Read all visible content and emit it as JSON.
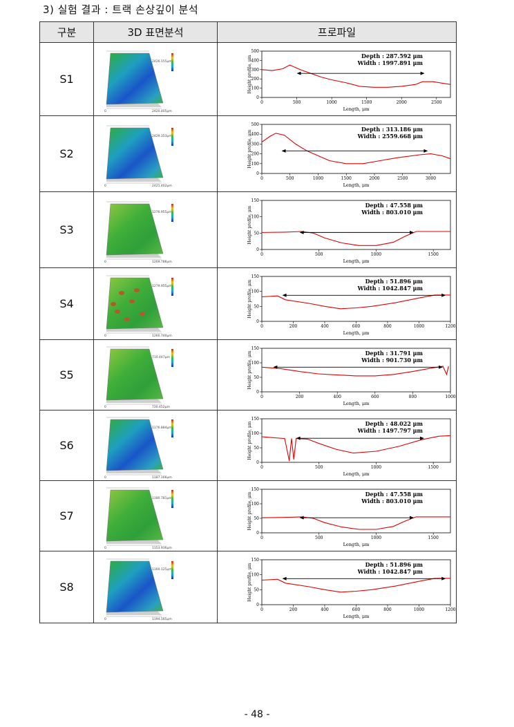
{
  "section_title": "3) 실험 결과 : 트랙 손상깊이 분석",
  "headers": {
    "col1": "구분",
    "col2": "3D 표면분석",
    "col3": "프로파일"
  },
  "page_number": "- 48 -",
  "profile_axis": {
    "xlabel": "Length, μm",
    "ylabel": "Height profile, μm"
  },
  "rows": [
    {
      "id": "S1",
      "map_labels": {
        "right": "2426.155μm",
        "bottom": "2420.405μm",
        "origin": "0"
      },
      "depth": "Depth : 287.592 μm",
      "width": "Width : 1997.891 μm",
      "xticks": [
        "0",
        "500",
        "1000",
        "1500",
        "2000",
        "2500"
      ],
      "yticks": [
        "500",
        "400",
        "300",
        "200",
        "100",
        "0"
      ],
      "xmax": 2700,
      "ymax": 500,
      "profile": [
        [
          0,
          300
        ],
        [
          150,
          290
        ],
        [
          300,
          310
        ],
        [
          400,
          350
        ],
        [
          550,
          300
        ],
        [
          700,
          260
        ],
        [
          850,
          220
        ],
        [
          1000,
          190
        ],
        [
          1200,
          160
        ],
        [
          1400,
          120
        ],
        [
          1600,
          110
        ],
        [
          1800,
          110
        ],
        [
          2000,
          120
        ],
        [
          2200,
          140
        ],
        [
          2300,
          170
        ],
        [
          2450,
          170
        ],
        [
          2700,
          140
        ]
      ],
      "arrow": [
        500,
        2330,
        260
      ]
    },
    {
      "id": "S2",
      "map_labels": {
        "right": "2429.353μm",
        "bottom": "2421.402μm",
        "origin": "0"
      },
      "depth": "Depth : 313.186 μm",
      "width": "Width : 2559.668 μm",
      "xticks": [
        "0",
        "500",
        "1000",
        "1500",
        "2000",
        "2500",
        "3000"
      ],
      "yticks": [
        "500",
        "400",
        "300",
        "200",
        "100",
        "0"
      ],
      "xmax": 3350,
      "ymax": 500,
      "profile": [
        [
          0,
          320
        ],
        [
          150,
          380
        ],
        [
          250,
          410
        ],
        [
          400,
          390
        ],
        [
          600,
          300
        ],
        [
          800,
          230
        ],
        [
          1000,
          180
        ],
        [
          1200,
          130
        ],
        [
          1500,
          100
        ],
        [
          1800,
          100
        ],
        [
          2100,
          130
        ],
        [
          2400,
          160
        ],
        [
          2800,
          190
        ],
        [
          3000,
          200
        ],
        [
          3200,
          180
        ],
        [
          3350,
          150
        ]
      ],
      "arrow": [
        350,
        2950,
        230
      ]
    },
    {
      "id": "S3",
      "map_labels": {
        "right": "1276.955μm",
        "bottom": "1269.786μm",
        "origin": "0"
      },
      "depth": "Depth : 47.558 μm",
      "width": "Width : 803.010 μm",
      "xticks": [
        "0",
        "500",
        "1000",
        "1500"
      ],
      "yticks": [
        "150",
        "100",
        "50",
        "0"
      ],
      "xmax": 1650,
      "ymax": 150,
      "profile": [
        [
          0,
          52
        ],
        [
          200,
          53
        ],
        [
          350,
          55
        ],
        [
          450,
          50
        ],
        [
          550,
          35
        ],
        [
          700,
          20
        ],
        [
          850,
          12
        ],
        [
          1000,
          12
        ],
        [
          1150,
          22
        ],
        [
          1250,
          40
        ],
        [
          1350,
          55
        ],
        [
          1500,
          55
        ],
        [
          1650,
          55
        ]
      ],
      "arrow": [
        330,
        1330,
        52
      ]
    },
    {
      "id": "S4",
      "map_labels": {
        "right": "1279.955μm",
        "bottom": "1260.740μm",
        "origin": "0"
      },
      "depth": "Depth : 51.896 μm",
      "width": "Width : 1042.847 μm",
      "xticks": [
        "0",
        "200",
        "400",
        "600",
        "800",
        "1000",
        "1200"
      ],
      "yticks": [
        "150",
        "100",
        "50",
        "0"
      ],
      "xmax": 1200,
      "ymax": 150,
      "profile": [
        [
          0,
          82
        ],
        [
          100,
          85
        ],
        [
          150,
          72
        ],
        [
          300,
          60
        ],
        [
          400,
          50
        ],
        [
          500,
          42
        ],
        [
          600,
          45
        ],
        [
          700,
          50
        ],
        [
          850,
          62
        ],
        [
          1000,
          78
        ],
        [
          1100,
          88
        ],
        [
          1200,
          88
        ]
      ],
      "arrow": [
        130,
        1170,
        87
      ]
    },
    {
      "id": "S5",
      "map_labels": {
        "right": "710.447μm",
        "bottom": "720.452μm",
        "origin": "0"
      },
      "depth": "Depth : 31.791 μm",
      "width": "Width : 901.730 μm",
      "xticks": [
        "0",
        "200",
        "400",
        "600",
        "800",
        "1000"
      ],
      "yticks": [
        "150",
        "100",
        "50",
        "0"
      ],
      "xmax": 1000,
      "ymax": 150,
      "profile": [
        [
          0,
          85
        ],
        [
          100,
          80
        ],
        [
          200,
          70
        ],
        [
          300,
          62
        ],
        [
          400,
          58
        ],
        [
          500,
          55
        ],
        [
          600,
          55
        ],
        [
          700,
          60
        ],
        [
          800,
          70
        ],
        [
          900,
          82
        ],
        [
          960,
          88
        ],
        [
          980,
          60
        ],
        [
          990,
          88
        ]
      ],
      "arrow": [
        60,
        960,
        85
      ]
    },
    {
      "id": "S6",
      "map_labels": {
        "right": "1176.884μm",
        "bottom": "1187.166μm",
        "origin": "0"
      },
      "depth": "Depth : 48.022 μm",
      "width": "Width : 1497.797 μm",
      "xticks": [
        "0",
        "500",
        "1000",
        "1500"
      ],
      "yticks": [
        "150",
        "100",
        "50",
        "0"
      ],
      "xmax": 1650,
      "ymax": 150,
      "profile": [
        [
          0,
          88
        ],
        [
          200,
          82
        ],
        [
          240,
          5
        ],
        [
          260,
          82
        ],
        [
          280,
          10
        ],
        [
          300,
          82
        ],
        [
          400,
          80
        ],
        [
          500,
          65
        ],
        [
          650,
          45
        ],
        [
          800,
          32
        ],
        [
          1000,
          38
        ],
        [
          1200,
          55
        ],
        [
          1400,
          78
        ],
        [
          1550,
          90
        ],
        [
          1650,
          92
        ]
      ],
      "arrow": [
        300,
        1420,
        83
      ]
    },
    {
      "id": "S7",
      "map_labels": {
        "right": "1180.781μm",
        "bottom": "1153.936μm",
        "origin": "0"
      },
      "depth": "Depth : 47.558 μm",
      "width": "Width : 803.010 μm",
      "xticks": [
        "0",
        "500",
        "1000",
        "1500"
      ],
      "yticks": [
        "150",
        "100",
        "50",
        "0"
      ],
      "xmax": 1650,
      "ymax": 150,
      "profile": [
        [
          0,
          52
        ],
        [
          200,
          53
        ],
        [
          350,
          55
        ],
        [
          450,
          50
        ],
        [
          550,
          35
        ],
        [
          700,
          20
        ],
        [
          850,
          12
        ],
        [
          1000,
          12
        ],
        [
          1150,
          22
        ],
        [
          1250,
          40
        ],
        [
          1350,
          55
        ],
        [
          1500,
          55
        ],
        [
          1650,
          55
        ]
      ],
      "arrow": [
        330,
        1330,
        52
      ]
    },
    {
      "id": "S8",
      "map_labels": {
        "right": "1160.125μm",
        "bottom": "1194.565μm",
        "origin": "0"
      },
      "depth": "Depth : 51.896 μm",
      "width": "Width : 1042.847 μm",
      "xticks": [
        "0",
        "200",
        "400",
        "600",
        "800",
        "1000",
        "1200"
      ],
      "yticks": [
        "150",
        "100",
        "50",
        "0"
      ],
      "xmax": 1200,
      "ymax": 150,
      "profile": [
        [
          0,
          82
        ],
        [
          100,
          85
        ],
        [
          150,
          72
        ],
        [
          300,
          60
        ],
        [
          400,
          50
        ],
        [
          500,
          42
        ],
        [
          600,
          45
        ],
        [
          700,
          50
        ],
        [
          850,
          62
        ],
        [
          1000,
          78
        ],
        [
          1100,
          88
        ],
        [
          1200,
          88
        ]
      ],
      "arrow": [
        130,
        1170,
        87
      ]
    }
  ],
  "colors": {
    "profile_line": "#e00000",
    "header_bg": "#e6e6e6"
  }
}
